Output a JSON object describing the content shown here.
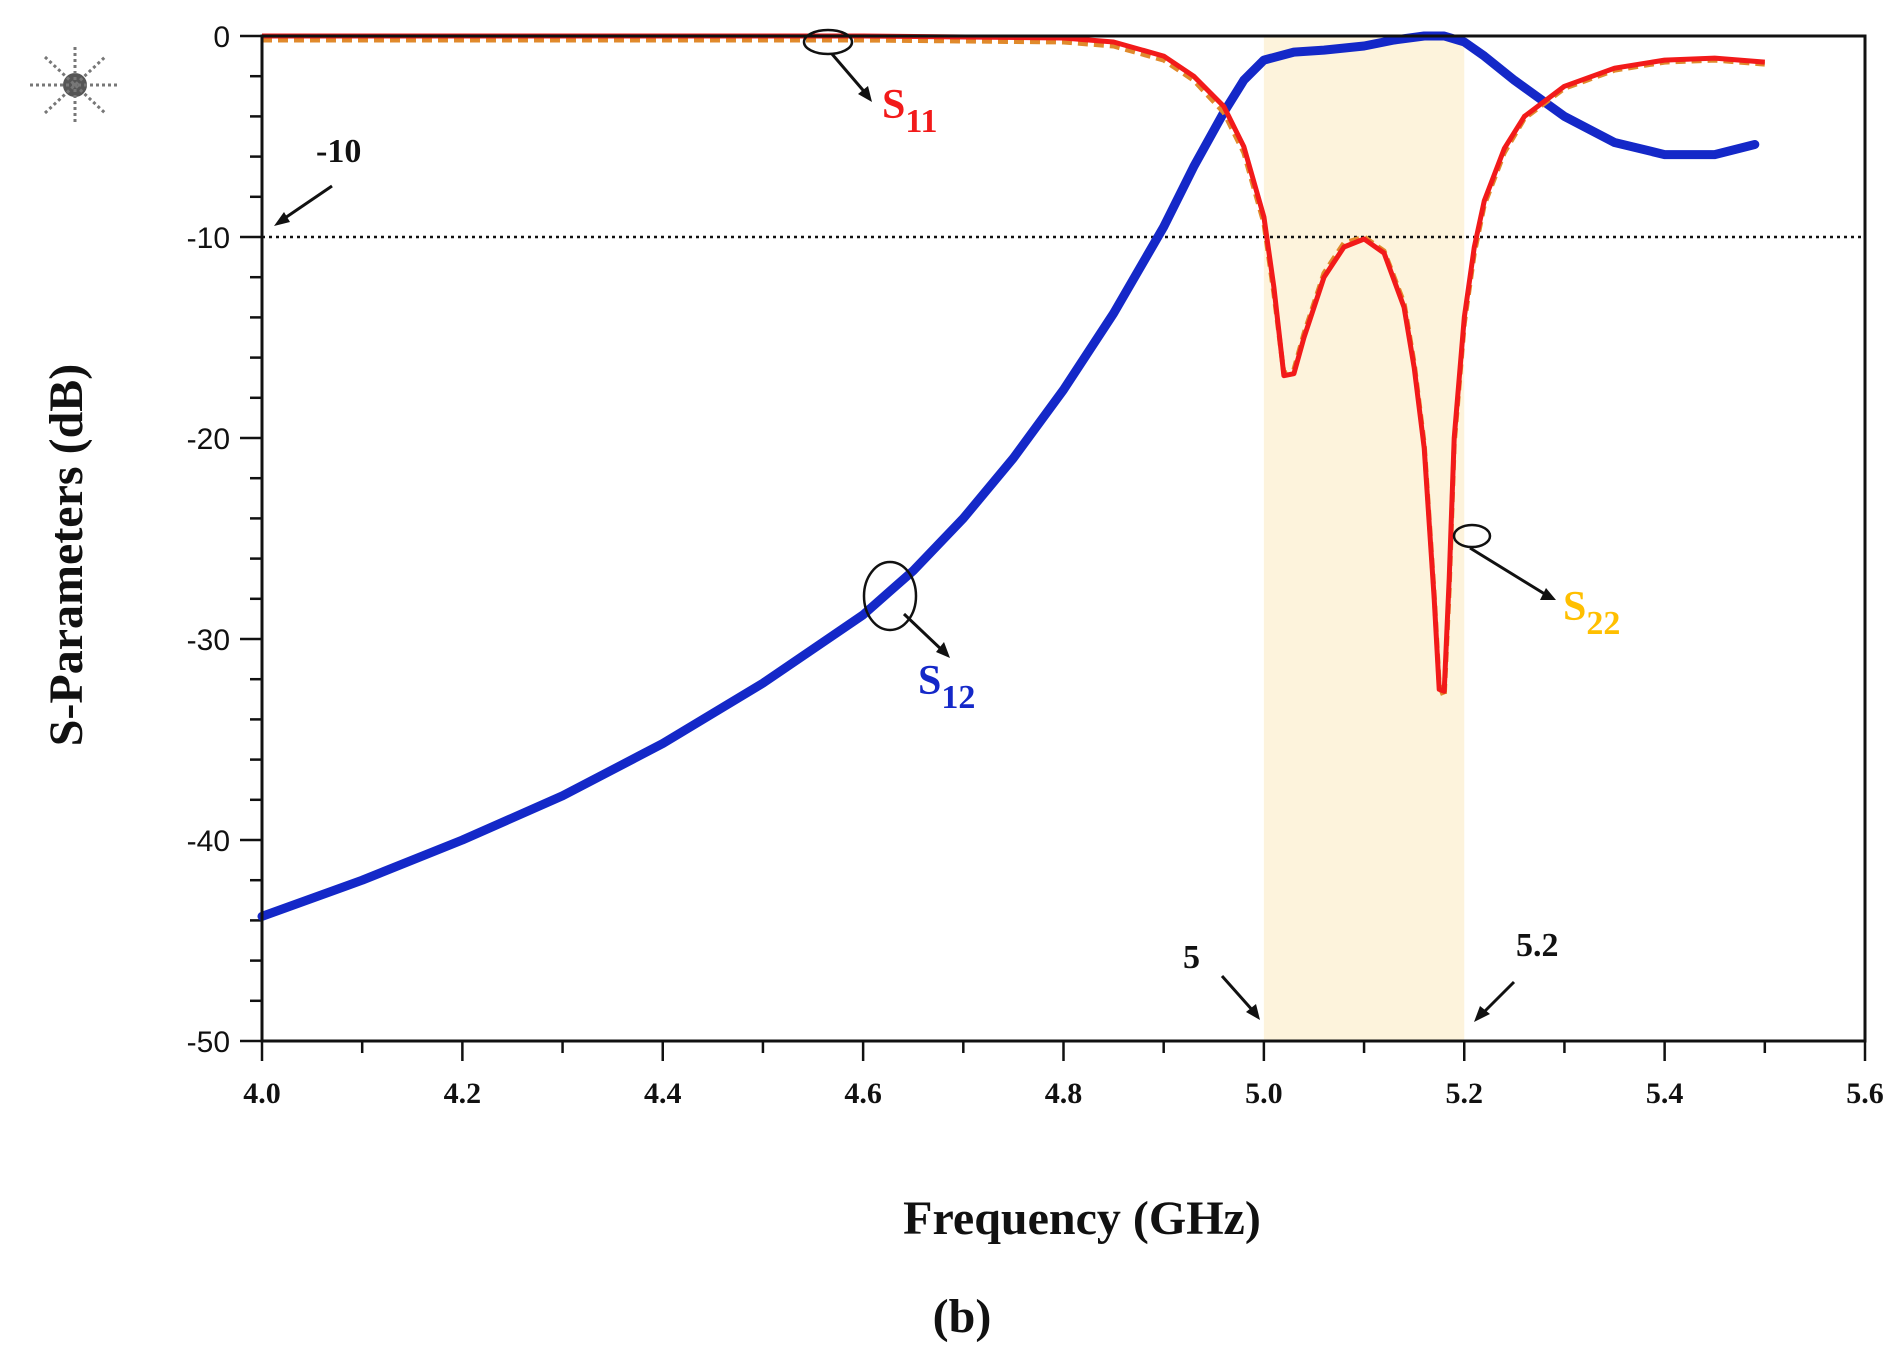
{
  "chart_data": {
    "type": "line",
    "title": "",
    "caption": "(b)",
    "xlabel": "Frequency (GHz)",
    "ylabel": "S-Parameters (dB)",
    "xlim": [
      4.0,
      5.6
    ],
    "ylim": [
      -50,
      0
    ],
    "xticks": [
      "4.0",
      "4.2",
      "4.4",
      "4.6",
      "4.8",
      "5.0",
      "5.2",
      "5.4",
      "5.6"
    ],
    "yticks": [
      "0",
      "-10",
      "-20",
      "-30",
      "-40",
      "-50"
    ],
    "grid": false,
    "passband": {
      "x_start": 5.0,
      "x_end": 5.2,
      "color": "#fdf3dc"
    },
    "reference_line": {
      "y": -10,
      "label": "-10"
    },
    "annotations": [
      {
        "text": "-10",
        "target": "reference-line"
      },
      {
        "text": "5",
        "target": "passband-start"
      },
      {
        "text": "5.2",
        "target": "passband-end"
      }
    ],
    "series": [
      {
        "name": "S11",
        "label_main": "S",
        "label_sub": "11",
        "color": "#f21a1a",
        "style": "solid",
        "x": [
          4.0,
          4.2,
          4.4,
          4.6,
          4.8,
          4.85,
          4.9,
          4.93,
          4.96,
          4.98,
          5.0,
          5.01,
          5.02,
          5.03,
          5.04,
          5.06,
          5.08,
          5.1,
          5.12,
          5.14,
          5.15,
          5.16,
          5.17,
          5.175,
          5.18,
          5.185,
          5.19,
          5.2,
          5.21,
          5.22,
          5.24,
          5.26,
          5.3,
          5.35,
          5.4,
          5.45,
          5.5
        ],
        "y": [
          0,
          0,
          0,
          0,
          -0.1,
          -0.3,
          -1.0,
          -2.0,
          -3.5,
          -5.5,
          -9.0,
          -12.5,
          -16.9,
          -16.8,
          -15.0,
          -12.0,
          -10.5,
          -10.1,
          -10.8,
          -13.5,
          -16.5,
          -20.5,
          -28.0,
          -32.5,
          -32.6,
          -27.0,
          -20.0,
          -14.0,
          -10.5,
          -8.2,
          -5.6,
          -4.0,
          -2.5,
          -1.6,
          -1.2,
          -1.1,
          -1.3
        ]
      },
      {
        "name": "S22",
        "label_main": "S",
        "label_sub": "22",
        "color": "#e08a2c",
        "label_color": "#ffbf00",
        "style": "dashed",
        "x": [
          4.0,
          4.2,
          4.4,
          4.6,
          4.8,
          4.85,
          4.9,
          4.93,
          4.96,
          4.98,
          5.0,
          5.01,
          5.02,
          5.03,
          5.04,
          5.06,
          5.08,
          5.1,
          5.12,
          5.14,
          5.15,
          5.16,
          5.17,
          5.175,
          5.18,
          5.185,
          5.19,
          5.2,
          5.21,
          5.22,
          5.24,
          5.26,
          5.3,
          5.35,
          5.4,
          5.45,
          5.5
        ],
        "y": [
          -0.2,
          -0.2,
          -0.2,
          -0.2,
          -0.3,
          -0.5,
          -1.2,
          -2.2,
          -3.8,
          -5.8,
          -9.3,
          -12.8,
          -16.8,
          -16.6,
          -14.8,
          -11.8,
          -10.3,
          -10.0,
          -10.7,
          -13.3,
          -16.3,
          -20.3,
          -27.8,
          -32.3,
          -32.9,
          -27.5,
          -20.3,
          -14.3,
          -10.8,
          -8.4,
          -5.8,
          -4.1,
          -2.6,
          -1.7,
          -1.3,
          -1.2,
          -1.4
        ]
      },
      {
        "name": "S12",
        "label_main": "S",
        "label_sub": "12",
        "color": "#1428c8",
        "style": "solid",
        "x": [
          4.0,
          4.1,
          4.2,
          4.3,
          4.4,
          4.5,
          4.6,
          4.65,
          4.7,
          4.75,
          4.8,
          4.85,
          4.9,
          4.93,
          4.96,
          4.98,
          5.0,
          5.03,
          5.06,
          5.1,
          5.13,
          5.16,
          5.18,
          5.2,
          5.22,
          5.25,
          5.3,
          5.35,
          5.4,
          5.45,
          5.49
        ],
        "y": [
          -43.8,
          -42.0,
          -40.0,
          -37.8,
          -35.2,
          -32.2,
          -28.8,
          -26.6,
          -24.0,
          -21.0,
          -17.6,
          -13.8,
          -9.5,
          -6.5,
          -3.8,
          -2.2,
          -1.2,
          -0.8,
          -0.7,
          -0.5,
          -0.2,
          0.0,
          0.0,
          -0.3,
          -1.0,
          -2.2,
          -4.0,
          -5.3,
          -5.9,
          -5.9,
          -5.4
        ]
      }
    ]
  }
}
